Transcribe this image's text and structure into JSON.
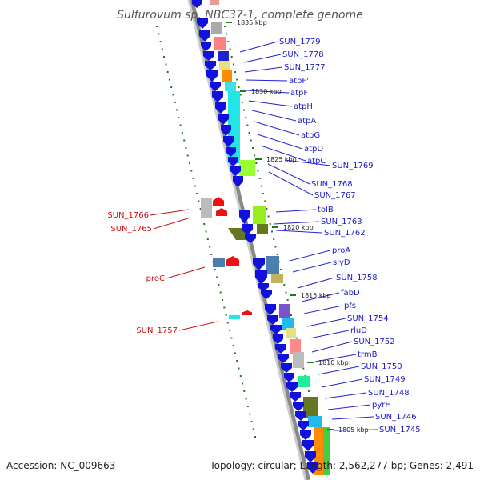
{
  "title": "Sulfurovum sp. NBC37-1, complete genome",
  "footer": {
    "accession": "Accession: NC_009663",
    "summary": "Topology: circular; Length: 2,562,277 bp; Genes: 2,491"
  },
  "colors": {
    "gene": "#1111dd",
    "gene_reverse": "#ee1111",
    "backbone": "#cccccc",
    "label_forward": "#1a1acc",
    "label_reverse": "#cc1111",
    "tick": "#1e7a1e"
  },
  "kbp_markers": [
    {
      "label": "1835 kbp"
    },
    {
      "label": "1830 kbp"
    },
    {
      "label": "1825 kbp"
    },
    {
      "label": "1820 kbp"
    },
    {
      "label": "1815 kbp"
    },
    {
      "label": "1810 kbp"
    },
    {
      "label": "1805 kbp"
    }
  ],
  "genes_forward": [
    {
      "label": "SUN_1779"
    },
    {
      "label": "SUN_1778"
    },
    {
      "label": "SUN_1777"
    },
    {
      "label": "atpF'"
    },
    {
      "label": "atpF"
    },
    {
      "label": "atpH"
    },
    {
      "label": "atpA"
    },
    {
      "label": "atpG"
    },
    {
      "label": "atpD"
    },
    {
      "label": "atpC"
    },
    {
      "label": "SUN_1769"
    },
    {
      "label": "SUN_1768"
    },
    {
      "label": "SUN_1767"
    },
    {
      "label": "tolB"
    },
    {
      "label": "SUN_1763"
    },
    {
      "label": "SUN_1762"
    },
    {
      "label": "proA"
    },
    {
      "label": "slyD"
    },
    {
      "label": "SUN_1758"
    },
    {
      "label": "fabD"
    },
    {
      "label": "pfs"
    },
    {
      "label": "SUN_1754"
    },
    {
      "label": "rluD"
    },
    {
      "label": "SUN_1752"
    },
    {
      "label": "trmB"
    },
    {
      "label": "SUN_1750"
    },
    {
      "label": "SUN_1749"
    },
    {
      "label": "SUN_1748"
    },
    {
      "label": "pyrH"
    },
    {
      "label": "SUN_1746"
    },
    {
      "label": "SUN_1745"
    }
  ],
  "genes_reverse": [
    {
      "label": "SUN_1766"
    },
    {
      "label": "SUN_1765"
    },
    {
      "label": "proC"
    },
    {
      "label": "SUN_1757"
    }
  ]
}
